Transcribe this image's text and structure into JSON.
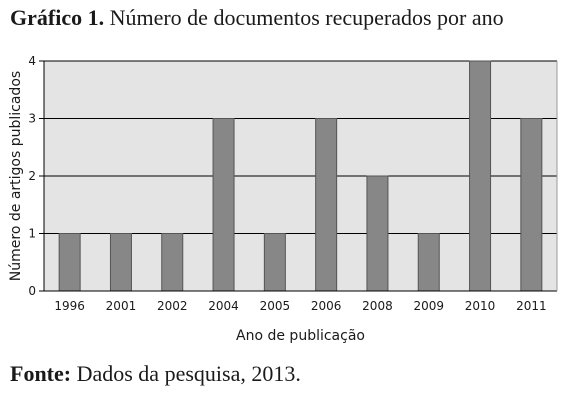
{
  "caption": {
    "title_prefix": "Gráfico 1.",
    "title_text": " Número de documentos recuperados por ano",
    "source_prefix": "Fonte:",
    "source_text": " Dados da pesquisa, 2013."
  },
  "chart_data": {
    "type": "bar",
    "categories": [
      "1996",
      "2001",
      "2002",
      "2004",
      "2005",
      "2006",
      "2008",
      "2009",
      "2010",
      "2011"
    ],
    "values": [
      1,
      1,
      1,
      3,
      1,
      3,
      2,
      1,
      4,
      3
    ],
    "xlabel": "Ano de publicação",
    "ylabel": "Número de artigos publicados",
    "ylim": [
      0,
      4
    ],
    "yticks": [
      0,
      1,
      2,
      3,
      4
    ],
    "grid": true,
    "legend": "none",
    "colors": {
      "bar_fill": "#878787",
      "bar_stroke": "#555555",
      "plot_background": "#e4e4e4",
      "gridline": "#000000",
      "axis": "#000000"
    }
  }
}
